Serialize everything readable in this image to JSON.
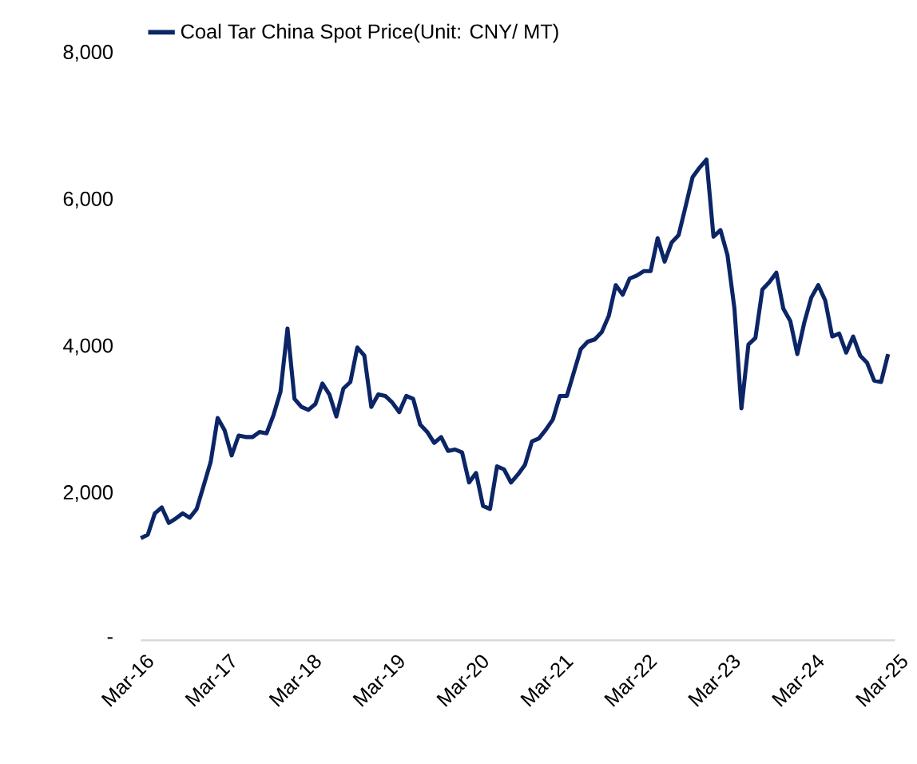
{
  "chart_data": {
    "type": "line",
    "x": [
      "2016-03",
      "2016-04",
      "2016-05",
      "2016-06",
      "2016-07",
      "2016-08",
      "2016-09",
      "2016-10",
      "2016-11",
      "2016-12",
      "2017-01",
      "2017-02",
      "2017-03",
      "2017-04",
      "2017-05",
      "2017-06",
      "2017-07",
      "2017-08",
      "2017-09",
      "2017-10",
      "2017-11",
      "2017-12",
      "2018-01",
      "2018-02",
      "2018-03",
      "2018-04",
      "2018-05",
      "2018-06",
      "2018-07",
      "2018-08",
      "2018-09",
      "2018-10",
      "2018-11",
      "2018-12",
      "2019-01",
      "2019-02",
      "2019-03",
      "2019-04",
      "2019-05",
      "2019-06",
      "2019-07",
      "2019-08",
      "2019-09",
      "2019-10",
      "2019-11",
      "2019-12",
      "2020-01",
      "2020-02",
      "2020-03",
      "2020-04",
      "2020-05",
      "2020-06",
      "2020-07",
      "2020-08",
      "2020-09",
      "2020-10",
      "2020-11",
      "2020-12",
      "2021-01",
      "2021-02",
      "2021-03",
      "2021-04",
      "2021-05",
      "2021-06",
      "2021-07",
      "2021-08",
      "2021-09",
      "2021-10",
      "2021-11",
      "2021-12",
      "2022-01",
      "2022-02",
      "2022-03",
      "2022-04",
      "2022-05",
      "2022-06",
      "2022-07",
      "2022-08",
      "2022-09",
      "2022-10",
      "2022-11",
      "2022-12",
      "2023-01",
      "2023-02",
      "2023-03",
      "2023-04",
      "2023-05",
      "2023-06",
      "2023-07",
      "2023-08",
      "2023-09",
      "2023-10",
      "2023-11",
      "2023-12",
      "2024-01",
      "2024-02",
      "2024-03",
      "2024-04",
      "2024-05",
      "2024-06",
      "2024-07",
      "2024-08",
      "2024-09",
      "2024-10",
      "2024-11",
      "2024-12",
      "2025-01",
      "2025-02"
    ],
    "series": [
      {
        "name": "Coal Tar China Spot Price(Unit: CNY/ MT)",
        "color": "#0b2566",
        "values": [
          1390,
          1440,
          1730,
          1810,
          1600,
          1660,
          1730,
          1670,
          1790,
          2110,
          2430,
          3030,
          2860,
          2520,
          2790,
          2770,
          2770,
          2840,
          2820,
          3070,
          3390,
          4250,
          3290,
          3180,
          3140,
          3220,
          3500,
          3350,
          3050,
          3430,
          3520,
          3990,
          3880,
          3180,
          3350,
          3330,
          3240,
          3110,
          3330,
          3290,
          2940,
          2840,
          2690,
          2770,
          2580,
          2600,
          2560,
          2150,
          2280,
          1830,
          1790,
          2370,
          2330,
          2150,
          2260,
          2390,
          2710,
          2750,
          2870,
          3010,
          3330,
          3330,
          3650,
          3970,
          4070,
          4100,
          4200,
          4420,
          4840,
          4710,
          4930,
          4970,
          5030,
          5030,
          5480,
          5160,
          5420,
          5520,
          5910,
          6310,
          6440,
          6550,
          5500,
          5590,
          5250,
          4520,
          3160,
          4030,
          4120,
          4780,
          4880,
          5010,
          4520,
          4350,
          3900,
          4330,
          4670,
          4840,
          4630,
          4140,
          4180,
          3920,
          4140,
          3880,
          3780,
          3540,
          3520,
          3900
        ]
      }
    ],
    "xlim": [
      "2016-03",
      "2025-03"
    ],
    "xticks": [
      {
        "value": "2016-03",
        "label": "Mar-16"
      },
      {
        "value": "2017-03",
        "label": "Mar-17"
      },
      {
        "value": "2018-03",
        "label": "Mar-18"
      },
      {
        "value": "2019-03",
        "label": "Mar-19"
      },
      {
        "value": "2020-03",
        "label": "Mar-20"
      },
      {
        "value": "2021-03",
        "label": "Mar-21"
      },
      {
        "value": "2022-03",
        "label": "Mar-22"
      },
      {
        "value": "2023-03",
        "label": "Mar-23"
      },
      {
        "value": "2024-03",
        "label": "Mar-24"
      },
      {
        "value": "2025-03",
        "label": "Mar-25"
      }
    ],
    "ylim": [
      0,
      8000
    ],
    "yticks": [
      {
        "value": 0,
        "label": "-"
      },
      {
        "value": 2000,
        "label": "2,000"
      },
      {
        "value": 4000,
        "label": "4,000"
      },
      {
        "value": 6000,
        "label": "6,000"
      },
      {
        "value": 8000,
        "label": "8,000"
      }
    ],
    "legend": "top left",
    "marker": "none",
    "line_style": "solid",
    "grid": false
  }
}
